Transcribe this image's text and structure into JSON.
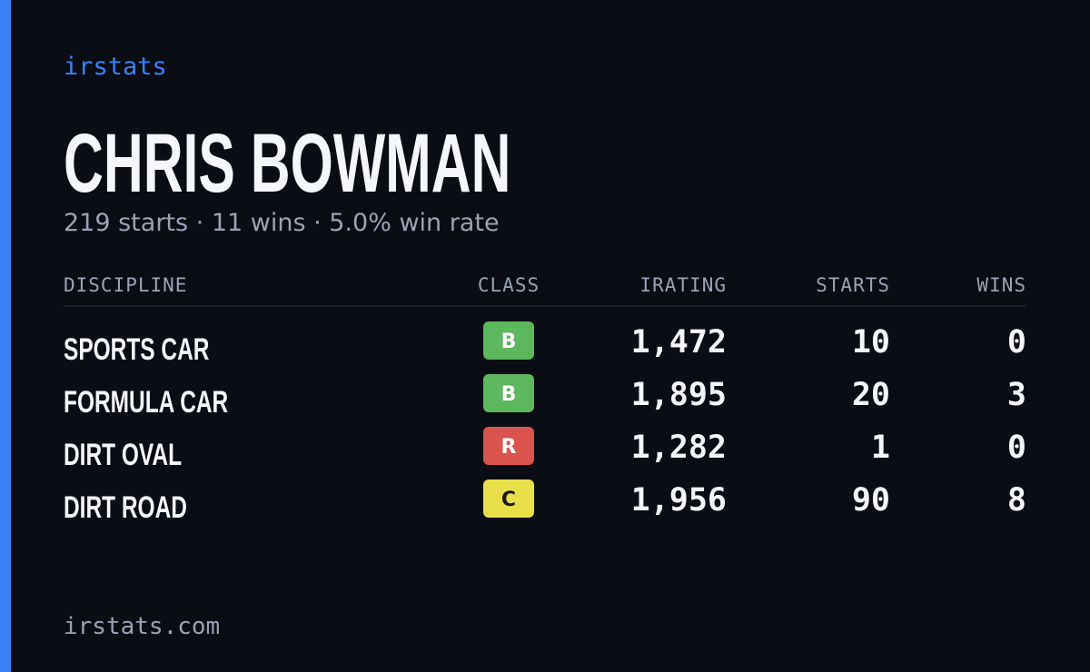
{
  "header": {
    "brand": "irstats",
    "name": "CHRIS BOWMAN",
    "summary": "219 starts · 11 wins · 5.0% win rate"
  },
  "table": {
    "columns": [
      "DISCIPLINE",
      "CLASS",
      "IRATING",
      "STARTS",
      "WINS"
    ],
    "rows": [
      [
        "SPORTS CAR",
        "B",
        "1,472",
        "10",
        "0"
      ],
      [
        "FORMULA CAR",
        "B",
        "1,895",
        "20",
        "3"
      ],
      [
        "DIRT OVAL",
        "R",
        "1,282",
        "1",
        "0"
      ],
      [
        "DIRT ROAD",
        "C",
        "1,956",
        "90",
        "8"
      ]
    ]
  },
  "footer": {
    "site": "irstats.com"
  }
}
